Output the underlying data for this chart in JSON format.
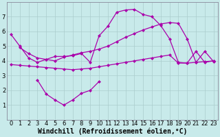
{
  "background_color": "#c8eaea",
  "line_color": "#aa00aa",
  "grid_color": "#aacccc",
  "xlabel": "Windchill (Refroidissement éolien,°C)",
  "xlabel_fontsize": 7.0,
  "tick_fontsize": 6.0,
  "ylim": [
    0,
    8
  ],
  "xlim": [
    -0.5,
    23.5
  ],
  "yticks": [
    1,
    2,
    3,
    4,
    5,
    6,
    7
  ],
  "xticks": [
    0,
    1,
    2,
    3,
    4,
    5,
    6,
    7,
    8,
    9,
    10,
    11,
    12,
    13,
    14,
    15,
    16,
    17,
    18,
    19,
    20,
    21,
    22,
    23
  ],
  "line1_x": [
    0,
    1,
    2,
    3,
    4,
    5,
    6,
    7,
    8,
    9,
    10,
    11,
    12,
    13,
    14,
    15,
    16,
    17,
    18,
    19,
    20,
    21,
    22,
    23
  ],
  "line1_y": [
    5.8,
    5.0,
    4.2,
    3.9,
    4.1,
    4.3,
    4.3,
    4.35,
    4.5,
    3.9,
    5.7,
    6.35,
    7.3,
    7.45,
    7.5,
    7.15,
    7.0,
    6.4,
    5.5,
    3.9,
    3.85,
    4.65,
    3.9,
    4.0
  ],
  "line2_x": [
    1,
    2,
    3,
    4,
    5,
    6,
    7,
    8,
    9,
    10,
    11,
    12,
    13,
    14,
    15,
    16,
    17,
    18,
    19,
    20,
    21,
    22,
    23
  ],
  "line2_y": [
    4.9,
    4.5,
    4.2,
    4.1,
    4.0,
    4.25,
    4.4,
    4.55,
    4.65,
    4.8,
    5.0,
    5.3,
    5.6,
    5.85,
    6.1,
    6.3,
    6.5,
    6.6,
    6.55,
    5.5,
    3.9,
    4.65,
    3.95
  ],
  "line3_x": [
    3,
    4,
    5,
    6,
    7,
    8,
    9,
    10
  ],
  "line3_y": [
    2.7,
    1.75,
    1.35,
    1.0,
    1.35,
    1.8,
    2.0,
    2.6
  ],
  "line4_x": [
    0,
    1,
    2,
    3,
    4,
    5,
    6,
    7,
    8,
    9,
    10,
    11,
    12,
    13,
    14,
    15,
    16,
    17,
    18,
    19,
    20,
    21,
    22,
    23
  ],
  "line4_y": [
    3.75,
    3.7,
    3.65,
    3.6,
    3.55,
    3.5,
    3.45,
    3.4,
    3.45,
    3.5,
    3.6,
    3.7,
    3.8,
    3.9,
    4.0,
    4.1,
    4.2,
    4.3,
    4.4,
    3.85,
    3.85,
    3.9,
    3.95,
    4.0
  ]
}
